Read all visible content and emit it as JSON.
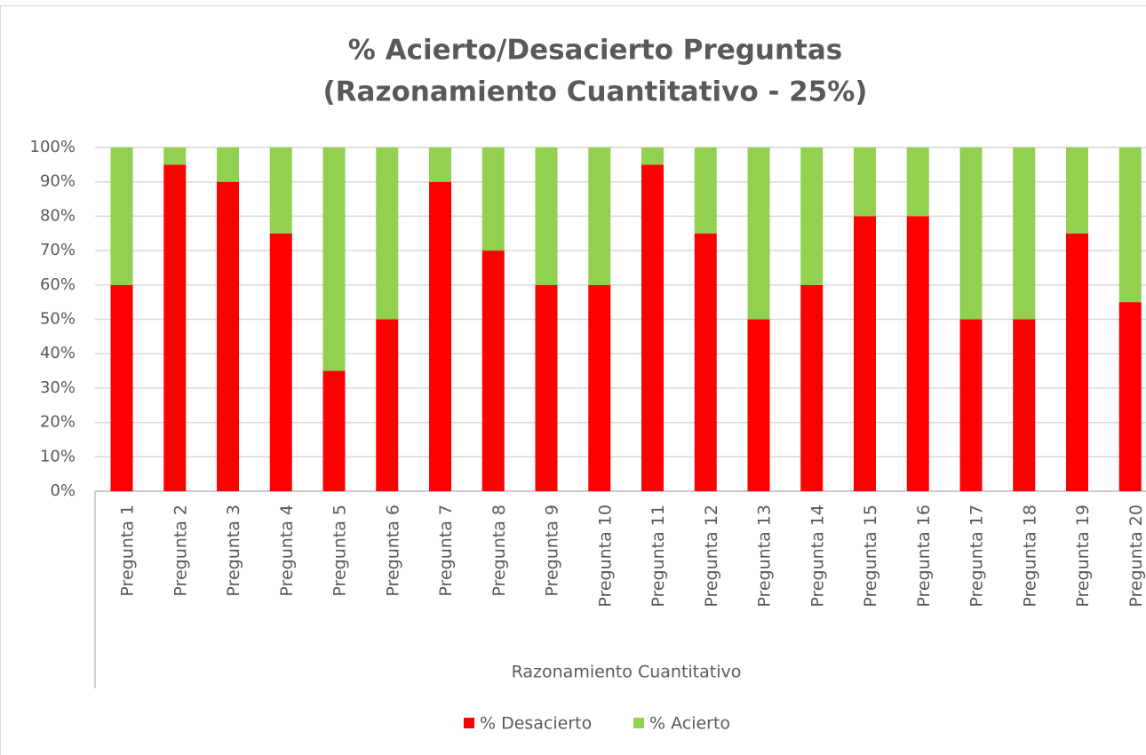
{
  "chart_data": {
    "type": "stacked_bar",
    "title": [
      "% Acierto/Desacierto Preguntas",
      "(Razonamiento Cuantitativo - 25%)"
    ],
    "xlabel": "Razonamiento Cuantitativo",
    "categories": [
      "Pregunta 1",
      "Pregunta 2",
      "Pregunta 3",
      "Pregunta 4",
      "Pregunta 5",
      "Pregunta 6",
      "Pregunta 7",
      "Pregunta 8",
      "Pregunta 9",
      "Pregunta 10",
      "Pregunta 11",
      "Pregunta 12",
      "Pregunta 13",
      "Pregunta 14",
      "Pregunta 15",
      "Pregunta 16",
      "Pregunta 17",
      "Pregunta 18",
      "Pregunta 19",
      "Pregunta 20"
    ],
    "series": [
      {
        "name": "% Desacierto",
        "color": "#ff0000",
        "values": [
          60,
          95,
          90,
          75,
          35,
          50,
          90,
          70,
          60,
          60,
          95,
          75,
          50,
          60,
          80,
          80,
          50,
          50,
          75,
          55
        ]
      },
      {
        "name": "% Acierto",
        "color": "#92d050",
        "values": [
          40,
          5,
          10,
          25,
          65,
          50,
          10,
          30,
          40,
          40,
          5,
          25,
          50,
          40,
          20,
          20,
          50,
          50,
          25,
          45
        ]
      }
    ],
    "ylim": [
      0,
      100
    ],
    "yticks": [
      {
        "value": 0,
        "label": "0%"
      },
      {
        "value": 10,
        "label": "10%"
      },
      {
        "value": 20,
        "label": "20%"
      },
      {
        "value": 30,
        "label": "30%"
      },
      {
        "value": 40,
        "label": "40%"
      },
      {
        "value": 50,
        "label": "50%"
      },
      {
        "value": 60,
        "label": "60%"
      },
      {
        "value": 70,
        "label": "70%"
      },
      {
        "value": 80,
        "label": "80%"
      },
      {
        "value": 90,
        "label": "90%"
      },
      {
        "value": 100,
        "label": "100%"
      }
    ],
    "grid": true,
    "legend": "bottom"
  }
}
